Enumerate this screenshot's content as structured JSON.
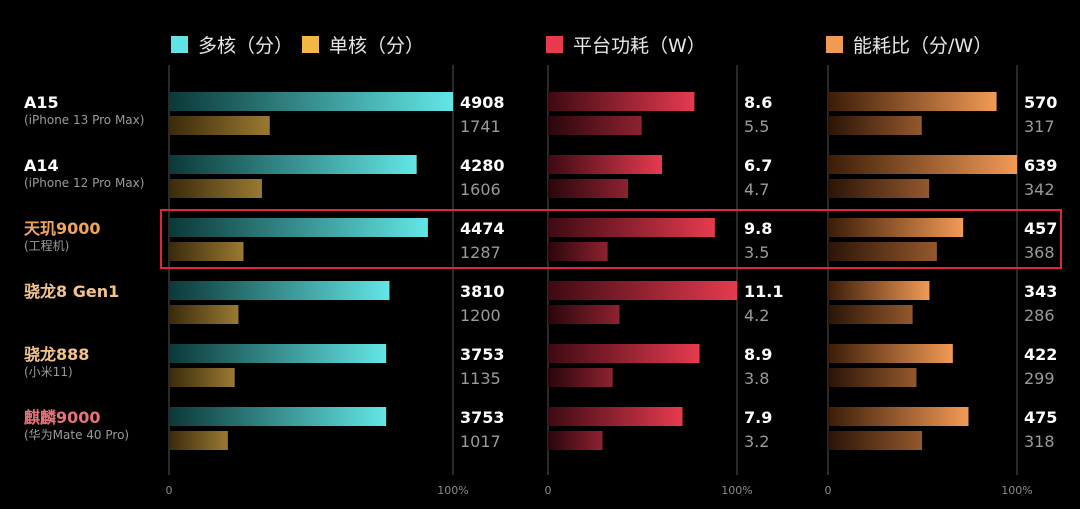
{
  "legend": [
    {
      "label": "多核（分）",
      "color": "#5fe3e3"
    },
    {
      "label": "单核（分）",
      "color": "#f2b744"
    },
    {
      "label": "平台功耗（W）",
      "color": "#e83a4f"
    },
    {
      "label": "能耗比（分/W）",
      "color": "#f09a52"
    }
  ],
  "highlight_index": 2,
  "highlight_color": "#e0243c",
  "chart_data": {
    "type": "bar",
    "categories": [
      {
        "name": "A15",
        "sub": "(iPhone 13 Pro Max)",
        "name_color": "#ffffff"
      },
      {
        "name": "A14",
        "sub": "(iPhone 12 Pro Max)",
        "name_color": "#ffffff"
      },
      {
        "name": "天玑9000",
        "sub": "(工程机)",
        "name_color": "#f0a45a"
      },
      {
        "name": "骁龙8 Gen1",
        "sub": "",
        "name_color": "#f3c48a"
      },
      {
        "name": "骁龙888",
        "sub": "(小米11)",
        "name_color": "#f3c48a"
      },
      {
        "name": "麒麟9000",
        "sub": "(华为Mate 40 Pro)",
        "name_color": "#e8727a"
      }
    ],
    "panels": [
      {
        "series": [
          {
            "name": "多核（分）",
            "values": [
              4908,
              4280,
              4474,
              3810,
              3753,
              3753
            ],
            "labels": [
              "4908",
              "4280",
              "4474",
              "3810",
              "3753",
              "3753"
            ],
            "color_start": "#0c3838",
            "color_end": "#63e6e6"
          },
          {
            "name": "单核（分）",
            "values": [
              1741,
              1606,
              1287,
              1200,
              1135,
              1017
            ],
            "labels": [
              "1741",
              "1606",
              "1287",
              "1200",
              "1135",
              "1017"
            ],
            "color_start": "#3a2a0c",
            "color_end": "#9a7a32"
          }
        ],
        "max": 4908,
        "ticks": [
          "0",
          "100%"
        ]
      },
      {
        "series": [
          {
            "name": "平台功耗（W）",
            "values": [
              8.6,
              6.7,
              9.8,
              11.1,
              8.9,
              7.9
            ],
            "labels": [
              "8.6",
              "6.7",
              "9.8",
              "11.1",
              "8.9",
              "7.9"
            ],
            "color_start": "#3d0a12",
            "color_end": "#e63a4f"
          },
          {
            "name": "平台功耗（W）",
            "values": [
              5.5,
              4.7,
              3.5,
              4.2,
              3.8,
              3.2
            ],
            "labels": [
              "5.5",
              "4.7",
              "3.5",
              "4.2",
              "3.8",
              "3.2"
            ],
            "color_start": "#2a060c",
            "color_end": "#8e2230"
          }
        ],
        "max": 11.1,
        "ticks": [
          "0",
          "100%"
        ]
      },
      {
        "series": [
          {
            "name": "能耗比（分/W）",
            "values": [
              570,
              639,
              457,
              343,
              422,
              475
            ],
            "labels": [
              "570",
              "639",
              "457",
              "343",
              "422",
              "475"
            ],
            "color_start": "#3a1c08",
            "color_end": "#f29a55"
          },
          {
            "name": "能耗比（分/W）",
            "values": [
              317,
              342,
              368,
              286,
              299,
              318
            ],
            "labels": [
              "317",
              "342",
              "368",
              "286",
              "299",
              "318"
            ],
            "color_start": "#2a1408",
            "color_end": "#94582c"
          }
        ],
        "max": 639,
        "ticks": [
          "0",
          "100%"
        ]
      }
    ]
  }
}
